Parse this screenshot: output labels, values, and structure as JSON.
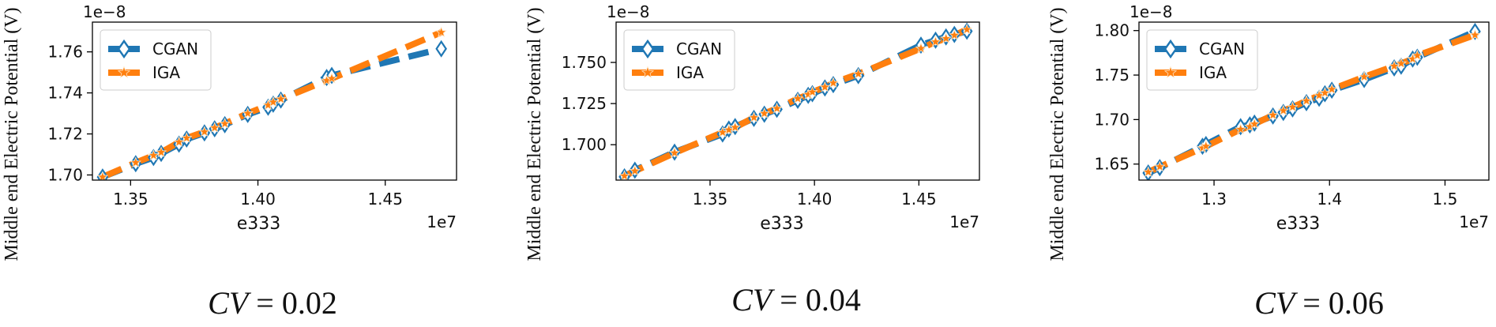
{
  "colors": {
    "cgan": "#1f77b4",
    "iga": "#ff7f0e"
  },
  "chart_data": [
    {
      "type": "line",
      "caption": {
        "var": "CV",
        "value": "= 0.02"
      },
      "ylabel": "Middle end Electric Potential (V)",
      "xlabel": "e333",
      "y_offset_label": "1e−8",
      "x_offset_label": "1e7",
      "xlim": [
        1.335,
        1.478
      ],
      "ylim": [
        1.6975,
        1.7745
      ],
      "x_ticks": [
        1.35,
        1.4,
        1.45
      ],
      "x_tick_labels": [
        "1.35",
        "1.40",
        "1.45"
      ],
      "y_ticks": [
        1.7,
        1.72,
        1.74,
        1.76
      ],
      "y_tick_labels": [
        "1.70",
        "1.72",
        "1.74",
        "1.76"
      ],
      "legend": [
        "CGAN",
        "IGA"
      ],
      "legend_position": "upper left",
      "series": [
        {
          "name": "CGAN",
          "x": [
            1.339,
            1.352,
            1.359,
            1.362,
            1.369,
            1.372,
            1.379,
            1.383,
            1.387,
            1.396,
            1.404,
            1.406,
            1.409,
            1.427,
            1.429,
            1.472
          ],
          "y": [
            1.699,
            1.7055,
            1.7085,
            1.7105,
            1.715,
            1.7175,
            1.7205,
            1.7225,
            1.7245,
            1.7295,
            1.733,
            1.7345,
            1.7365,
            1.7475,
            1.7485,
            1.7615
          ]
        },
        {
          "name": "IGA",
          "x": [
            1.339,
            1.352,
            1.359,
            1.362,
            1.369,
            1.372,
            1.379,
            1.383,
            1.387,
            1.396,
            1.404,
            1.406,
            1.409,
            1.427,
            1.429,
            1.472
          ],
          "y": [
            1.699,
            1.706,
            1.7095,
            1.711,
            1.716,
            1.718,
            1.721,
            1.723,
            1.725,
            1.73,
            1.734,
            1.7355,
            1.737,
            1.746,
            1.747,
            1.7695
          ]
        }
      ]
    },
    {
      "type": "line",
      "caption": {
        "var": "CV",
        "value": "= 0.04"
      },
      "ylabel": "Middle end Electric Potential (V)",
      "xlabel": "e333",
      "y_offset_label": "1e−8",
      "x_offset_label": "1e7",
      "xlim": [
        1.305,
        1.479
      ],
      "ylim": [
        1.6785,
        1.7745
      ],
      "x_ticks": [
        1.35,
        1.4,
        1.45
      ],
      "x_tick_labels": [
        "1.35",
        "1.40",
        "1.45"
      ],
      "y_ticks": [
        1.7,
        1.725,
        1.75
      ],
      "y_tick_labels": [
        "1.700",
        "1.725",
        "1.750"
      ],
      "legend": [
        "CGAN",
        "IGA"
      ],
      "legend_position": "upper left",
      "series": [
        {
          "name": "CGAN",
          "x": [
            1.309,
            1.314,
            1.333,
            1.356,
            1.359,
            1.362,
            1.371,
            1.376,
            1.382,
            1.392,
            1.397,
            1.399,
            1.405,
            1.409,
            1.421,
            1.451,
            1.458,
            1.463,
            1.467,
            1.473
          ],
          "y": [
            1.6805,
            1.6845,
            1.6955,
            1.7065,
            1.7095,
            1.711,
            1.716,
            1.7185,
            1.7215,
            1.727,
            1.73,
            1.731,
            1.7345,
            1.7365,
            1.742,
            1.7605,
            1.7635,
            1.7655,
            1.767,
            1.769
          ]
        },
        {
          "name": "IGA",
          "x": [
            1.309,
            1.314,
            1.333,
            1.356,
            1.359,
            1.362,
            1.371,
            1.376,
            1.382,
            1.392,
            1.397,
            1.399,
            1.405,
            1.409,
            1.421,
            1.451,
            1.458,
            1.463,
            1.467,
            1.473
          ],
          "y": [
            1.681,
            1.684,
            1.695,
            1.7075,
            1.709,
            1.7105,
            1.7165,
            1.719,
            1.722,
            1.728,
            1.7305,
            1.732,
            1.735,
            1.7375,
            1.743,
            1.7585,
            1.7625,
            1.7645,
            1.7665,
            1.77
          ]
        }
      ]
    },
    {
      "type": "line",
      "caption": {
        "var": "CV",
        "value": "= 0.06"
      },
      "ylabel": "Middle end Electric Potential (V)",
      "xlabel": "e333",
      "y_offset_label": "1e−8",
      "x_offset_label": "1e7",
      "xlim": [
        1.235,
        1.538
      ],
      "ylim": [
        1.632,
        1.8095
      ],
      "x_ticks": [
        1.3,
        1.4,
        1.5
      ],
      "x_tick_labels": [
        "1.3",
        "1.4",
        "1.5"
      ],
      "y_ticks": [
        1.65,
        1.7,
        1.75,
        1.8
      ],
      "y_tick_labels": [
        "1.65",
        "1.70",
        "1.75",
        "1.80"
      ],
      "legend": [
        "CGAN",
        "IGA"
      ],
      "legend_position": "upper left",
      "series": [
        {
          "name": "CGAN",
          "x": [
            1.243,
            1.253,
            1.29,
            1.293,
            1.323,
            1.331,
            1.335,
            1.351,
            1.36,
            1.368,
            1.38,
            1.391,
            1.396,
            1.402,
            1.43,
            1.456,
            1.462,
            1.472,
            1.476,
            1.526
          ],
          "y": [
            1.64,
            1.646,
            1.67,
            1.672,
            1.692,
            1.694,
            1.696,
            1.704,
            1.708,
            1.712,
            1.719,
            1.724,
            1.729,
            1.733,
            1.745,
            1.758,
            1.76,
            1.768,
            1.77,
            1.799
          ]
        },
        {
          "name": "IGA",
          "x": [
            1.243,
            1.253,
            1.29,
            1.293,
            1.323,
            1.331,
            1.335,
            1.351,
            1.36,
            1.368,
            1.38,
            1.391,
            1.396,
            1.402,
            1.43,
            1.456,
            1.462,
            1.472,
            1.476,
            1.526
          ],
          "y": [
            1.641,
            1.647,
            1.668,
            1.67,
            1.689,
            1.692,
            1.695,
            1.705,
            1.71,
            1.714,
            1.721,
            1.727,
            1.73,
            1.734,
            1.748,
            1.76,
            1.763,
            1.768,
            1.772,
            1.795
          ]
        }
      ]
    }
  ]
}
